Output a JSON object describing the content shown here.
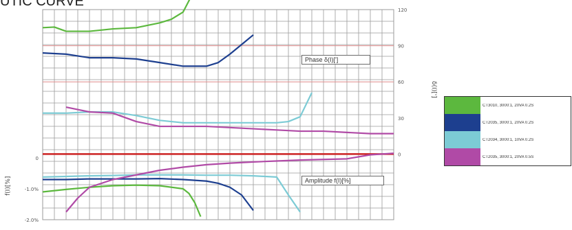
{
  "title": "UTIC CURVE",
  "chart_data": [
    {
      "type": "line",
      "title": "UTIC CURVE",
      "x": [
        0,
        2,
        4,
        6,
        8,
        10,
        12,
        14,
        16,
        18,
        20,
        22,
        24,
        26,
        28,
        30
      ],
      "y_right": {
        "ylim": [
          -30,
          120
        ],
        "ticks": [
          "120",
          "90",
          "60",
          "30",
          "0"
        ],
        "ylabel": "δ(I)[']"
      },
      "y_left": {
        "ylim": [
          -2,
          2
        ],
        "ticks": [
          "0",
          "-1.0%",
          "-2.0%"
        ],
        "ylabel": "f(I)[%]"
      },
      "annotations": [
        "Phase δ(I)[']",
        "Amplitude f(I)[%]"
      ],
      "legend_placement": "right",
      "series": [
        {
          "name": "CT3010, 3000:1, 20VA 0.2S",
          "color": "#5cb83e",
          "phase": {
            "x": [
              0,
              1,
              2,
              4,
              6,
              8,
              10,
              11,
              12,
              12.8,
              13.2
            ],
            "y": [
              105,
              105.5,
              102,
              102,
              104,
              105,
              109,
              112,
              118,
              133,
              151
            ]
          },
          "amplitude": {
            "x": [
              0,
              2,
              4,
              6,
              8,
              10,
              12,
              12.5,
              13,
              13.5
            ],
            "y": [
              -1.1,
              -1.02,
              -0.95,
              -0.9,
              -0.88,
              -0.9,
              -1.0,
              -1.15,
              -1.45,
              -1.9
            ]
          }
        },
        {
          "name": "CT2035, 3000:1, 20VA 0.2S",
          "color": "#1d3f8f",
          "phase": {
            "x": [
              0,
              2,
              4,
              6,
              8,
              10,
              12,
              14,
              15,
              16,
              17,
              18
            ],
            "y": [
              84,
              83,
              80,
              80,
              79,
              76,
              73,
              73,
              76,
              83,
              91,
              99
            ]
          },
          "amplitude": {
            "x": [
              0,
              2,
              4,
              6,
              8,
              10,
              12,
              14,
              15,
              16,
              17,
              18
            ],
            "y": [
              -0.7,
              -0.7,
              -0.68,
              -0.68,
              -0.68,
              -0.67,
              -0.7,
              -0.75,
              -0.82,
              -0.95,
              -1.2,
              -1.7
            ]
          }
        },
        {
          "name": "CT2034, 3000:1, 10VA 0.2S",
          "color": "#7ccbd5",
          "phase": {
            "x": [
              0,
              2,
              4,
              6,
              8,
              10,
              12,
              14,
              16,
              18,
              20,
              21,
              22,
              23
            ],
            "y": [
              34,
              34,
              35,
              35,
              32,
              28,
              26,
              26,
              26,
              26,
              26,
              27,
              31,
              51
            ]
          },
          "amplitude": {
            "x": [
              0,
              2,
              4,
              6,
              8,
              10,
              12,
              14,
              16,
              18,
              20,
              21,
              22
            ],
            "y": [
              -0.62,
              -0.6,
              -0.58,
              -0.57,
              -0.55,
              -0.55,
              -0.55,
              -0.56,
              -0.56,
              -0.58,
              -0.62,
              -1.2,
              -1.75
            ]
          }
        },
        {
          "name": "CT2035, 3000:1, 20VA 0.5S",
          "color": "#b04aa6",
          "phase": {
            "x": [
              2,
              3,
              4,
              6,
              8,
              10,
              12,
              14,
              16,
              18,
              20,
              22,
              24,
              26,
              28,
              30
            ],
            "y": [
              39,
              37,
              35,
              34,
              27,
              23,
              23,
              23,
              22,
              21,
              20,
              19,
              19,
              18,
              17,
              17
            ]
          },
          "amplitude": {
            "x": [
              2,
              3,
              4,
              6,
              8,
              10,
              12,
              14,
              16,
              18,
              20,
              22,
              24,
              26,
              28,
              30
            ],
            "y": [
              -1.75,
              -1.3,
              -0.95,
              -0.7,
              -0.55,
              -0.4,
              -0.3,
              -0.22,
              -0.17,
              -0.13,
              -0.1,
              -0.07,
              -0.05,
              -0.03,
              0.1,
              0.15
            ]
          }
        }
      ]
    }
  ],
  "colors": {
    "reference_line": "#cc2222",
    "phase_ref_line": "#e08a8a",
    "grid": "#9a9a9a"
  }
}
